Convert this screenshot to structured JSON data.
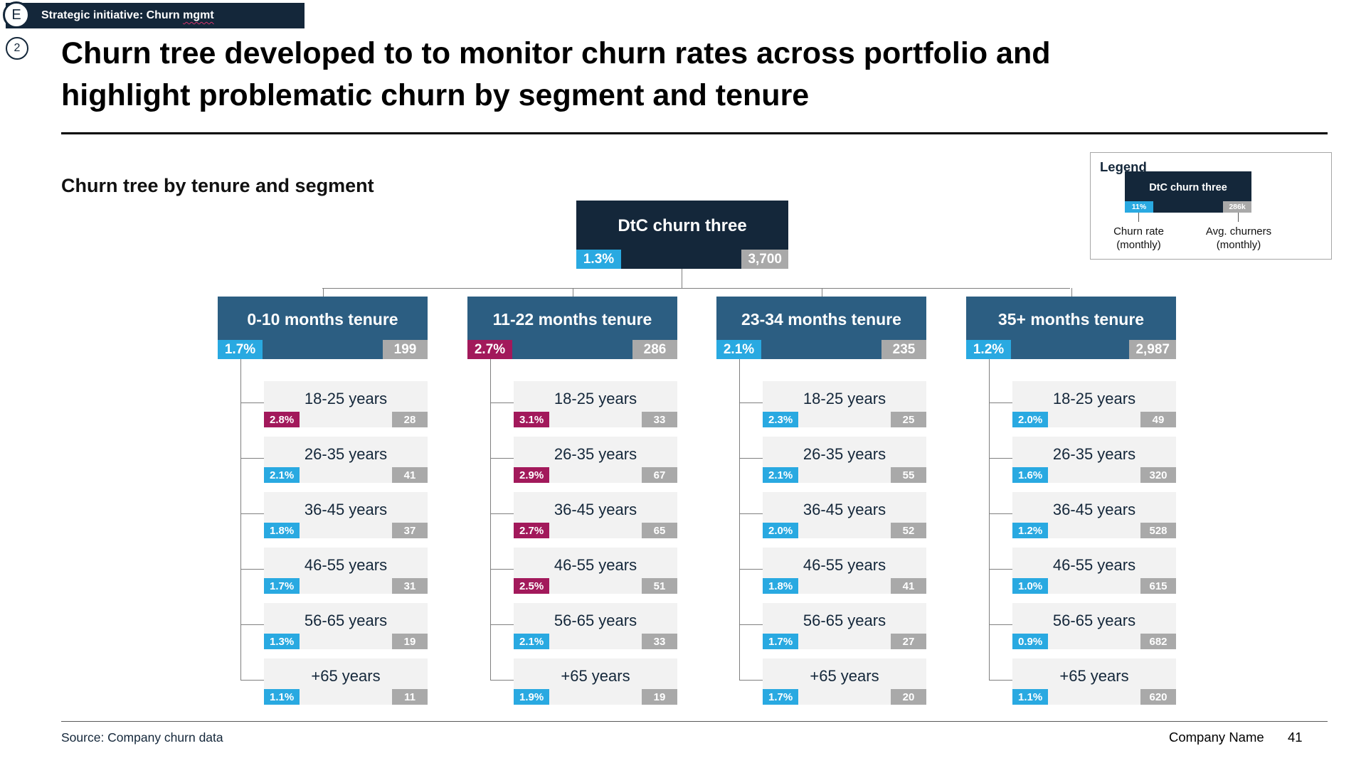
{
  "slide": {
    "tag_badge": {
      "icon_letter": "E",
      "label_prefix": "Strategic initiative: Churn ",
      "underlined_word": "mgmt"
    },
    "page_marker": "2",
    "title_line1": "Churn tree developed to to monitor churn rates across portfolio and",
    "title_line2": "highlight problematic churn by segment and tenure",
    "section_heading": "Churn tree by tenure and segment",
    "footer": {
      "source": "Source: Company churn data",
      "company": "Company Name",
      "page_number": "41"
    }
  },
  "legend": {
    "title": "Legend",
    "node_label": "DtC churn three",
    "rate_chip": "11%",
    "rate_chip_color": "blue",
    "churners_chip": "286k",
    "rate_label": "Churn rate\n(monthly)",
    "churners_label": "Avg. churners\n(monthly)"
  },
  "colors": {
    "navy": "#14273A",
    "steel_blue": "#2C5E82",
    "rate_blue": "#29A9E1",
    "rate_crimson": "#A2195B",
    "chip_gray": "#A9A9A9",
    "leaf_bg": "#F2F2F2",
    "connector": "#7F7F7F"
  },
  "tree": {
    "root": {
      "label": "DtC churn three",
      "rate": "1.3%",
      "rate_color": "blue",
      "count": "3,700"
    },
    "columns": [
      {
        "label": "0-10 months tenure",
        "rate": "1.7%",
        "rate_color": "blue",
        "count": "199",
        "leaves": [
          {
            "label": "18-25 years",
            "rate": "2.8%",
            "rate_color": "crimson",
            "count": "28"
          },
          {
            "label": "26-35 years",
            "rate": "2.1%",
            "rate_color": "blue",
            "count": "41"
          },
          {
            "label": "36-45 years",
            "rate": "1.8%",
            "rate_color": "blue",
            "count": "37"
          },
          {
            "label": "46-55 years",
            "rate": "1.7%",
            "rate_color": "blue",
            "count": "31"
          },
          {
            "label": "56-65 years",
            "rate": "1.3%",
            "rate_color": "blue",
            "count": "19"
          },
          {
            "label": "+65 years",
            "rate": "1.1%",
            "rate_color": "blue",
            "count": "11"
          }
        ]
      },
      {
        "label": "11-22 months tenure",
        "rate": "2.7%",
        "rate_color": "crimson",
        "count": "286",
        "leaves": [
          {
            "label": "18-25 years",
            "rate": "3.1%",
            "rate_color": "crimson",
            "count": "33"
          },
          {
            "label": "26-35 years",
            "rate": "2.9%",
            "rate_color": "crimson",
            "count": "67"
          },
          {
            "label": "36-45 years",
            "rate": "2.7%",
            "rate_color": "crimson",
            "count": "65"
          },
          {
            "label": "46-55 years",
            "rate": "2.5%",
            "rate_color": "crimson",
            "count": "51"
          },
          {
            "label": "56-65 years",
            "rate": "2.1%",
            "rate_color": "blue",
            "count": "33"
          },
          {
            "label": "+65 years",
            "rate": "1.9%",
            "rate_color": "blue",
            "count": "19"
          }
        ]
      },
      {
        "label": "23-34 months tenure",
        "rate": "2.1%",
        "rate_color": "blue",
        "count": "235",
        "leaves": [
          {
            "label": "18-25 years",
            "rate": "2.3%",
            "rate_color": "blue",
            "count": "25"
          },
          {
            "label": "26-35 years",
            "rate": "2.1%",
            "rate_color": "blue",
            "count": "55"
          },
          {
            "label": "36-45 years",
            "rate": "2.0%",
            "rate_color": "blue",
            "count": "52"
          },
          {
            "label": "46-55 years",
            "rate": "1.8%",
            "rate_color": "blue",
            "count": "41"
          },
          {
            "label": "56-65 years",
            "rate": "1.7%",
            "rate_color": "blue",
            "count": "27"
          },
          {
            "label": "+65 years",
            "rate": "1.7%",
            "rate_color": "blue",
            "count": "20"
          }
        ]
      },
      {
        "label": "35+ months tenure",
        "rate": "1.2%",
        "rate_color": "blue",
        "count": "2,987",
        "leaves": [
          {
            "label": "18-25 years",
            "rate": "2.0%",
            "rate_color": "blue",
            "count": "49"
          },
          {
            "label": "26-35 years",
            "rate": "1.6%",
            "rate_color": "blue",
            "count": "320"
          },
          {
            "label": "36-45 years",
            "rate": "1.2%",
            "rate_color": "blue",
            "count": "528"
          },
          {
            "label": "46-55 years",
            "rate": "1.0%",
            "rate_color": "blue",
            "count": "615"
          },
          {
            "label": "56-65 years",
            "rate": "0.9%",
            "rate_color": "blue",
            "count": "682"
          },
          {
            "label": "+65 years",
            "rate": "1.1%",
            "rate_color": "blue",
            "count": "620"
          }
        ]
      }
    ]
  }
}
